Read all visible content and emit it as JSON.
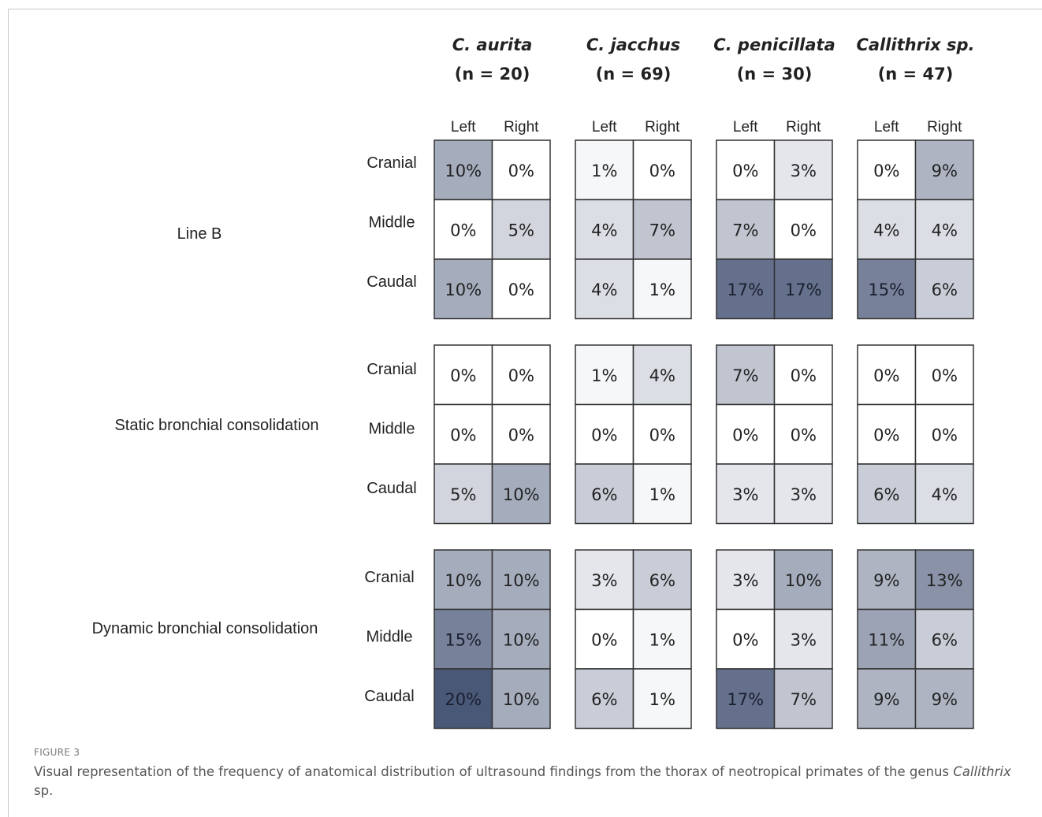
{
  "chart_data": {
    "type": "heatmap",
    "groups": [
      {
        "name": "C. aurita",
        "n_label": "(n = 20)"
      },
      {
        "name": "C. jacchus",
        "n_label": "(n = 69)"
      },
      {
        "name": "C. penicillata",
        "n_label": "(n = 30)"
      },
      {
        "name": "Callithrix sp.",
        "n_label": "(n = 47)"
      }
    ],
    "sides": [
      "Left",
      "Right"
    ],
    "regions": [
      "Cranial",
      "Middle",
      "Caudal"
    ],
    "findings": [
      {
        "name": "Line B",
        "values": [
          [
            [
              10,
              0
            ],
            [
              0,
              5
            ],
            [
              10,
              0
            ]
          ],
          [
            [
              1,
              0
            ],
            [
              4,
              7
            ],
            [
              4,
              1
            ]
          ],
          [
            [
              0,
              3
            ],
            [
              7,
              0
            ],
            [
              17,
              17
            ]
          ],
          [
            [
              0,
              9
            ],
            [
              4,
              4
            ],
            [
              15,
              6
            ]
          ]
        ]
      },
      {
        "name": "Static bronchial consolidation",
        "values": [
          [
            [
              0,
              0
            ],
            [
              0,
              0
            ],
            [
              5,
              10
            ]
          ],
          [
            [
              1,
              4
            ],
            [
              0,
              0
            ],
            [
              6,
              1
            ]
          ],
          [
            [
              7,
              0
            ],
            [
              0,
              0
            ],
            [
              3,
              3
            ]
          ],
          [
            [
              0,
              0
            ],
            [
              0,
              0
            ],
            [
              6,
              4
            ]
          ]
        ]
      },
      {
        "name": "Dynamic bronchial consolidation",
        "values": [
          [
            [
              10,
              10
            ],
            [
              15,
              10
            ],
            [
              20,
              10
            ]
          ],
          [
            [
              3,
              6
            ],
            [
              0,
              1
            ],
            [
              6,
              1
            ]
          ],
          [
            [
              3,
              10
            ],
            [
              0,
              3
            ],
            [
              17,
              7
            ]
          ],
          [
            [
              9,
              13
            ],
            [
              11,
              6
            ],
            [
              9,
              9
            ]
          ]
        ]
      }
    ],
    "value_suffix": "%",
    "color_scale": {
      "min": 0,
      "max": 20,
      "low": "#ffffff",
      "high": "#4a5878"
    }
  },
  "caption": {
    "label": "FIGURE 3",
    "text_before": "Visual representation of the frequency of anatomical distribution of ultrasound findings from the thorax of neotropical primates of the genus ",
    "text_italic": "Callithrix",
    "text_after": " sp."
  }
}
